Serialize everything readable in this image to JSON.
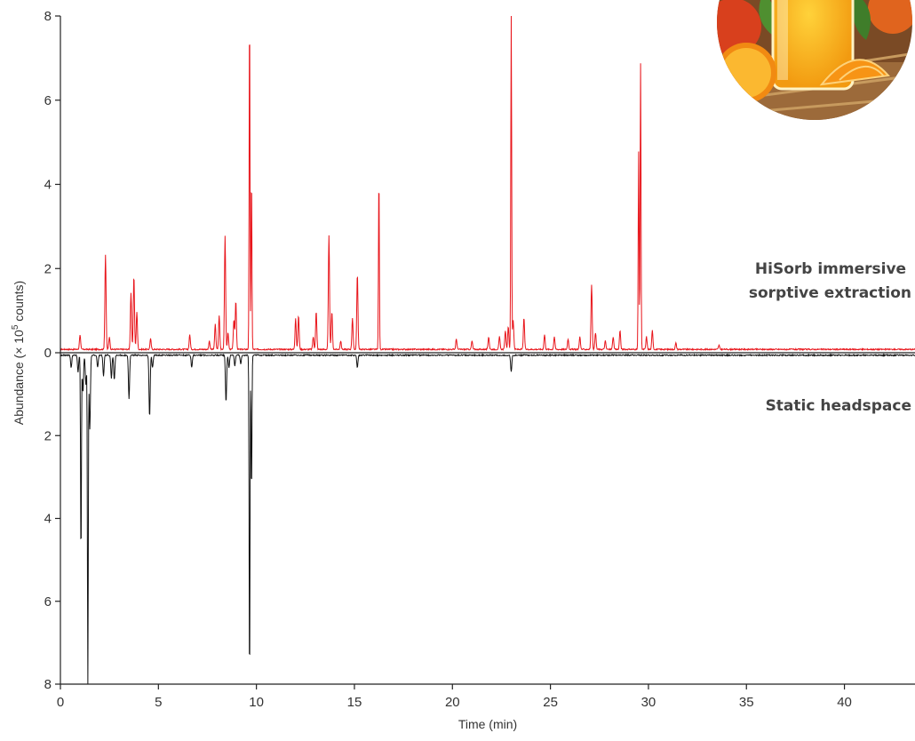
{
  "chart_data": {
    "type": "line",
    "orientation": "mirrored",
    "title": "",
    "xlabel": "Time (min)",
    "ylabel_prefix": "Abundance (× 10",
    "ylabel_sup": "5",
    "ylabel_suffix": " counts)",
    "xlim": [
      0,
      43.6
    ],
    "ylim_top": [
      0,
      8
    ],
    "ylim_bottom": [
      0,
      8
    ],
    "xticks": [
      "0",
      "5",
      "10",
      "15",
      "20",
      "25",
      "30",
      "35",
      "40"
    ],
    "yticks_top": [
      "8",
      "6",
      "4",
      "2",
      "0"
    ],
    "yticks_bottom": [
      "2",
      "4",
      "6",
      "8"
    ],
    "colors": {
      "top": "#e8151b",
      "bottom": "#111111"
    },
    "series": [
      {
        "name_lines": [
          "HiSorb immersive",
          "sorptive extraction"
        ],
        "direction": "up",
        "baseline": 0.08,
        "peaks": [
          [
            1.0,
            0.35
          ],
          [
            2.3,
            2.25
          ],
          [
            2.5,
            0.3
          ],
          [
            3.6,
            1.35
          ],
          [
            3.75,
            1.75
          ],
          [
            3.9,
            0.9
          ],
          [
            4.6,
            0.25
          ],
          [
            6.6,
            0.35
          ],
          [
            7.6,
            0.2
          ],
          [
            7.9,
            0.6
          ],
          [
            8.1,
            0.8
          ],
          [
            8.4,
            2.7
          ],
          [
            8.55,
            0.4
          ],
          [
            8.85,
            0.7
          ],
          [
            8.95,
            1.15
          ],
          [
            9.65,
            8.0
          ],
          [
            9.75,
            4.1
          ],
          [
            12.0,
            0.75
          ],
          [
            12.15,
            0.8
          ],
          [
            12.9,
            0.3
          ],
          [
            13.05,
            0.9
          ],
          [
            13.7,
            2.7
          ],
          [
            13.85,
            0.9
          ],
          [
            14.3,
            0.2
          ],
          [
            14.9,
            0.75
          ],
          [
            15.15,
            1.8
          ],
          [
            16.25,
            4.1
          ],
          [
            20.2,
            0.25
          ],
          [
            21.0,
            0.2
          ],
          [
            21.85,
            0.3
          ],
          [
            22.4,
            0.3
          ],
          [
            22.7,
            0.45
          ],
          [
            22.85,
            0.55
          ],
          [
            23.0,
            8.0
          ],
          [
            23.1,
            0.7
          ],
          [
            23.65,
            0.75
          ],
          [
            24.7,
            0.35
          ],
          [
            25.2,
            0.3
          ],
          [
            25.9,
            0.25
          ],
          [
            26.5,
            0.3
          ],
          [
            27.1,
            1.55
          ],
          [
            27.3,
            0.4
          ],
          [
            27.8,
            0.2
          ],
          [
            28.2,
            0.3
          ],
          [
            28.55,
            0.45
          ],
          [
            29.5,
            4.7
          ],
          [
            29.6,
            6.8
          ],
          [
            29.9,
            0.3
          ],
          [
            30.2,
            0.45
          ],
          [
            31.4,
            0.15
          ],
          [
            33.6,
            0.1
          ]
        ]
      },
      {
        "name_lines": [
          "Static headspace"
        ],
        "direction": "down",
        "baseline": 0.06,
        "peaks": [
          [
            0.55,
            0.3
          ],
          [
            0.9,
            0.4
          ],
          [
            1.05,
            4.9
          ],
          [
            1.15,
            0.9
          ],
          [
            1.3,
            0.7
          ],
          [
            1.4,
            8.0
          ],
          [
            1.5,
            1.8
          ],
          [
            1.9,
            0.3
          ],
          [
            2.2,
            0.5
          ],
          [
            2.6,
            0.55
          ],
          [
            2.75,
            0.6
          ],
          [
            3.5,
            1.05
          ],
          [
            4.55,
            1.5
          ],
          [
            4.7,
            0.3
          ],
          [
            6.7,
            0.3
          ],
          [
            8.45,
            1.15
          ],
          [
            8.6,
            0.3
          ],
          [
            8.9,
            0.25
          ],
          [
            9.2,
            0.2
          ],
          [
            9.65,
            8.0
          ],
          [
            9.75,
            3.3
          ],
          [
            15.15,
            0.3
          ],
          [
            23.0,
            0.4
          ]
        ]
      }
    ],
    "grid": false,
    "legend": "direct labels at right"
  }
}
